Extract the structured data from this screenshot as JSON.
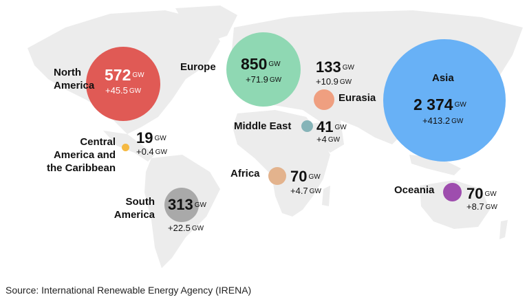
{
  "unit": "GW",
  "regions": {
    "north_america": {
      "name_line1": "North",
      "name_line2": "America",
      "value": "572",
      "change": "+45.5",
      "color": "#e05a55"
    },
    "central_america": {
      "name_line1": "Central",
      "name_line2": "America and",
      "name_line3": "the Caribbean",
      "value": "19",
      "change": "+0.4",
      "color": "#f5b942"
    },
    "south_america": {
      "name_line1": "South",
      "name_line2": "America",
      "value": "313",
      "change": "+22.5",
      "color": "#a9a9a9"
    },
    "europe": {
      "name": "Europe",
      "value": "850",
      "change": "+71.9",
      "color": "#8fd8b3"
    },
    "eurasia": {
      "name": "Eurasia",
      "value": "133",
      "change": "+10.9",
      "color": "#ef9f80"
    },
    "middle_east": {
      "name": "Middle East",
      "value": "41",
      "change": "+4",
      "color": "#86b4b8"
    },
    "africa": {
      "name": "Africa",
      "value": "70",
      "change": "+4.7",
      "color": "#e3b38d"
    },
    "asia": {
      "name": "Asia",
      "value": "2 374",
      "change": "+413.2",
      "color": "#68b1f6"
    },
    "oceania": {
      "name": "Oceania",
      "value": "70",
      "change": "+8.7",
      "color": "#9e4dae"
    }
  },
  "source": "Source: International Renewable Energy Agency (IRENA)"
}
